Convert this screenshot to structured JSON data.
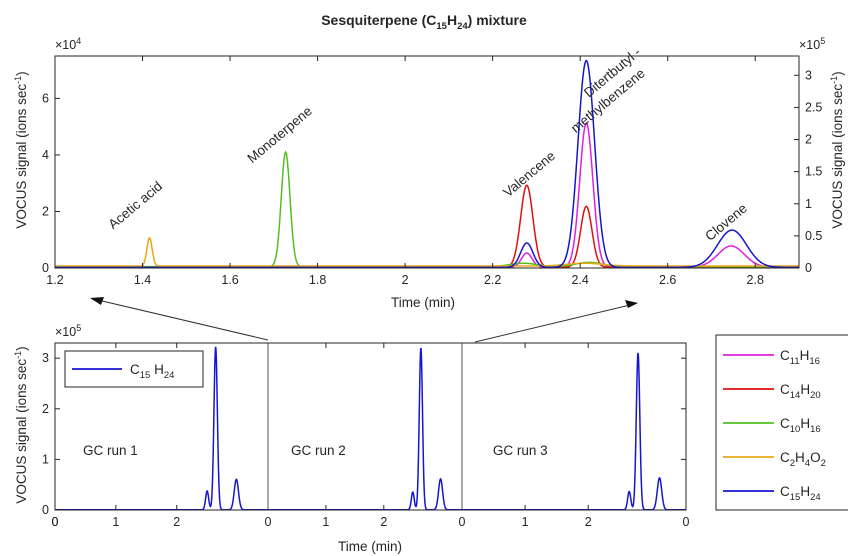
{
  "chart_data": [
    {
      "id": "top",
      "type": "line",
      "title": "Sesquiterpene (C15H24) mixture",
      "title_parts": {
        "main": "Sesquiterpene (C",
        "sub1": "15",
        "mid": "H",
        "sub2": "24",
        "tail": ") mixture"
      },
      "xlabel": "Time (min)",
      "ylabel_left": "VOCUS signal (ions sec",
      "ylabel_left_sup": "-1",
      "ylabel_left_tail": ")",
      "ylabel_right": "VOCUS signal (ions sec",
      "ylabel_right_sup": "-1",
      "ylabel_right_tail": ")",
      "xlim": [
        1.2,
        2.9
      ],
      "ylim_left": [
        0,
        75000
      ],
      "ylim_right": [
        0,
        330000
      ],
      "left_multiplier": "×10",
      "left_multiplier_exp": "4",
      "right_multiplier": "×10",
      "right_multiplier_exp": "5",
      "xticks": [
        "1.2",
        "1.4",
        "1.6",
        "1.8",
        "2",
        "2.2",
        "2.4",
        "2.6",
        "2.8"
      ],
      "xtick_values": [
        1.2,
        1.4,
        1.6,
        1.8,
        2.0,
        2.2,
        2.4,
        2.6,
        2.8
      ],
      "yticks_left": [
        "0",
        "2",
        "4",
        "6"
      ],
      "ytick_values_left": [
        0,
        20000,
        40000,
        60000
      ],
      "yticks_right": [
        "0",
        "0.5",
        "1",
        "1.5",
        "2",
        "2.5",
        "3"
      ],
      "ytick_values_right": [
        0,
        50000,
        100000,
        150000,
        200000,
        250000,
        300000
      ],
      "annotations": [
        {
          "text": "Acetic acid",
          "x": 1.39,
          "y": 21000
        },
        {
          "text": "Monoterpene",
          "x": 1.72,
          "y": 46000
        },
        {
          "text": "Valencene",
          "x": 2.29,
          "y": 32000
        },
        {
          "text": "Ditertbutyl -",
          "x": 2.48,
          "y": 68000
        },
        {
          "text": "methylbenzene",
          "x": 2.47,
          "y": 58000
        },
        {
          "text": "Clovene",
          "x": 2.74,
          "y": 15000
        }
      ],
      "series": [
        {
          "formula": "C11H16",
          "color": "#e020e0",
          "axis": "left",
          "baseline": 300,
          "peaks": [
            {
              "t": 2.278,
              "a": 5000,
              "w": 0.012
            },
            {
              "t": 2.414,
              "a": 51000,
              "w": 0.015
            },
            {
              "t": 2.745,
              "a": 7500,
              "w": 0.03
            }
          ]
        },
        {
          "formula": "C14H20",
          "color": "#e01010",
          "axis": "left",
          "baseline": 300,
          "peaks": [
            {
              "t": 2.278,
              "a": 29000,
              "w": 0.014
            },
            {
              "t": 2.414,
              "a": 21500,
              "w": 0.013
            }
          ]
        },
        {
          "formula": "C10H16",
          "color": "#50c020",
          "axis": "left",
          "baseline": 500,
          "peaks": [
            {
              "t": 1.727,
              "a": 40500,
              "w": 0.01
            },
            {
              "t": 2.27,
              "a": 1200,
              "w": 0.03
            },
            {
              "t": 2.42,
              "a": 1500,
              "w": 0.03
            }
          ]
        },
        {
          "formula": "C2H4O2",
          "color": "#e8a818",
          "axis": "left",
          "baseline": 700,
          "peaks": [
            {
              "t": 1.416,
              "a": 10000,
              "w": 0.006
            },
            {
              "t": 2.41,
              "a": 1000,
              "w": 0.04
            }
          ]
        },
        {
          "formula": "C15H24",
          "color": "#1515d0",
          "axis": "right",
          "baseline": 1000,
          "peaks": [
            {
              "t": 2.278,
              "a": 38000,
              "w": 0.014
            },
            {
              "t": 2.414,
              "a": 322000,
              "w": 0.019
            },
            {
              "t": 2.747,
              "a": 58000,
              "w": 0.033
            }
          ]
        }
      ]
    },
    {
      "id": "bottom",
      "type": "line",
      "xlabel": "Time (min)",
      "ylabel": "VOCUS signal (ions sec",
      "ylabel_sup": "-1",
      "ylabel_tail": ")",
      "ylim": [
        0,
        330000
      ],
      "multiplier": "×10",
      "multiplier_exp": "5",
      "yticks": [
        "0",
        "1",
        "2",
        "3"
      ],
      "ytick_values": [
        0,
        100000,
        200000,
        300000
      ],
      "runs": [
        {
          "label": "GC run 1",
          "xlim": [
            0,
            3.5
          ],
          "xticks": [
            "0",
            "1",
            "2",
            "0"
          ],
          "xtick_values": [
            0,
            1,
            2,
            3.5
          ]
        },
        {
          "label": "GC run 2",
          "xlim": [
            0,
            3.35
          ],
          "xticks": [
            "1",
            "2",
            "0"
          ],
          "xtick_values": [
            1,
            2,
            3.35
          ]
        },
        {
          "label": "GC run 3",
          "xlim": [
            0,
            3.55
          ],
          "xticks": [
            "1",
            "2",
            "0"
          ],
          "xtick_values": [
            1,
            2,
            3.55
          ]
        }
      ],
      "legend": {
        "formula": "C15 H24",
        "base": "C",
        "sub1": "15",
        "mid": " H",
        "sub2": "24",
        "color": "#1515d0"
      },
      "series": [
        {
          "run": 0,
          "color": "#1515d0",
          "peaks": [
            {
              "t": 2.5,
              "a": 37000,
              "w": 0.025
            },
            {
              "t": 2.64,
              "a": 322000,
              "w": 0.028
            },
            {
              "t": 2.98,
              "a": 60000,
              "w": 0.035
            }
          ]
        },
        {
          "run": 1,
          "color": "#1515d0",
          "peaks": [
            {
              "t": 2.5,
              "a": 35000,
              "w": 0.025
            },
            {
              "t": 2.64,
              "a": 320000,
              "w": 0.028
            },
            {
              "t": 2.98,
              "a": 61000,
              "w": 0.035
            }
          ]
        },
        {
          "run": 2,
          "color": "#1515d0",
          "peaks": [
            {
              "t": 2.65,
              "a": 36000,
              "w": 0.025
            },
            {
              "t": 2.79,
              "a": 310000,
              "w": 0.028
            },
            {
              "t": 3.13,
              "a": 63000,
              "w": 0.035
            }
          ]
        }
      ]
    }
  ],
  "legend_right": [
    {
      "base": "C",
      "n1": "11",
      "mid": "H",
      "n2": "16",
      "tail": "",
      "color": "#e020e0"
    },
    {
      "base": "C",
      "n1": "14",
      "mid": "H",
      "n2": "20",
      "tail": "",
      "color": "#e01010"
    },
    {
      "base": "C",
      "n1": "10",
      "mid": "H",
      "n2": "16",
      "tail": "",
      "color": "#50c020"
    },
    {
      "base": "C",
      "n1": "2",
      "mid": "H",
      "n2": "4",
      "tail": "O",
      "n3": "2",
      "color": "#e8a818"
    },
    {
      "base": "C",
      "n1": "15",
      "mid": "H",
      "n2": "24",
      "tail": "",
      "color": "#1515d0"
    }
  ]
}
